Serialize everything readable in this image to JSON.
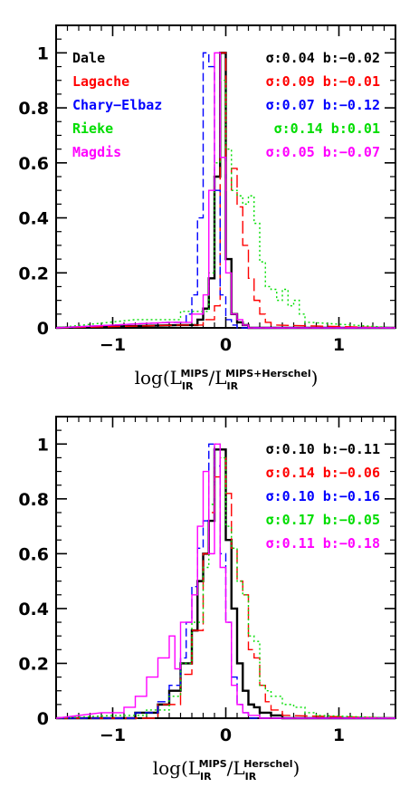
{
  "colors": {
    "Dale": "#000000",
    "Lagache": "#ff0000",
    "Chary-Elbaz": "#0000ff",
    "Rieke": "#00dd00",
    "Magdis": "#ff00ff"
  },
  "chart_data": [
    {
      "type": "line",
      "xlim": [
        -1.5,
        1.5
      ],
      "ylim": [
        0,
        1.1
      ],
      "xticks": [
        "−1",
        "0",
        "1"
      ],
      "xtick_values": [
        -1,
        0,
        1
      ],
      "yticks": [
        "0",
        "0.2",
        "0.4",
        "0.6",
        "0.8",
        "1"
      ],
      "ytick_values": [
        0,
        0.2,
        0.4,
        0.6,
        0.8,
        1
      ],
      "xlabel": {
        "pre": "log(L",
        "sub1": "IR",
        "sup1": "MIPS",
        "mid": "/L",
        "sub2": "IR",
        "sup2": "MIPS+Herschel",
        "post": ")"
      },
      "legend": [
        "Dale",
        "Lagache",
        "Chary−Elbaz",
        "Rieke",
        "Magdis"
      ],
      "stats": [
        {
          "text": "σ:0.04  b:−0.02",
          "series": "Dale"
        },
        {
          "text": "σ:0.09  b:−0.01",
          "series": "Lagache"
        },
        {
          "text": "σ:0.07  b:−0.12",
          "series": "Chary-Elbaz"
        },
        {
          "text": "σ:0.14  b:0.01",
          "series": "Rieke"
        },
        {
          "text": "σ:0.05  b:−0.07",
          "series": "Magdis"
        }
      ],
      "series": [
        {
          "name": "Dale",
          "dash": "solid",
          "x": [
            -0.4,
            -0.25,
            -0.2,
            -0.15,
            -0.1,
            -0.05,
            0.0,
            0.05,
            0.1,
            0.15,
            0.2
          ],
          "y": [
            0.01,
            0.03,
            0.07,
            0.18,
            0.55,
            1.0,
            0.25,
            0.05,
            0.02,
            0.01,
            0.0
          ]
        },
        {
          "name": "Lagache",
          "dash": "long",
          "x": [
            -0.4,
            -0.2,
            -0.1,
            -0.05,
            0.0,
            0.05,
            0.1,
            0.15,
            0.2,
            0.25,
            0.3,
            0.35,
            0.4
          ],
          "y": [
            0.01,
            0.03,
            0.08,
            1.0,
            0.5,
            0.58,
            0.44,
            0.3,
            0.18,
            0.1,
            0.05,
            0.02,
            0.01
          ]
        },
        {
          "name": "Chary-Elbaz",
          "dash": "short",
          "x": [
            -0.5,
            -0.35,
            -0.3,
            -0.25,
            -0.2,
            -0.15,
            -0.1,
            -0.05,
            0.0,
            0.05,
            0.1
          ],
          "y": [
            0.02,
            0.05,
            0.12,
            0.4,
            1.0,
            0.95,
            0.5,
            0.12,
            0.03,
            0.01,
            0.0
          ]
        },
        {
          "name": "Rieke",
          "dash": "dotted",
          "x": [
            -0.8,
            -0.4,
            -0.15,
            -0.1,
            -0.05,
            0.0,
            0.05,
            0.1,
            0.15,
            0.2,
            0.25,
            0.3,
            0.35,
            0.4,
            0.45,
            0.5,
            0.55,
            0.6,
            0.65,
            0.7
          ],
          "y": [
            0.03,
            0.06,
            0.2,
            0.6,
            0.9,
            0.65,
            0.5,
            0.48,
            0.45,
            0.48,
            0.38,
            0.24,
            0.15,
            0.14,
            0.1,
            0.14,
            0.08,
            0.1,
            0.05,
            0.02
          ]
        },
        {
          "name": "Magdis",
          "dash": "solid",
          "x": [
            -0.5,
            -0.3,
            -0.2,
            -0.15,
            -0.1,
            -0.05,
            0.0,
            0.05,
            0.1,
            0.15,
            0.2
          ],
          "y": [
            0.02,
            0.05,
            0.12,
            0.5,
            1.0,
            0.62,
            0.2,
            0.05,
            0.03,
            0.01,
            0.0
          ]
        }
      ]
    },
    {
      "type": "line",
      "xlim": [
        -1.5,
        1.5
      ],
      "ylim": [
        0,
        1.1
      ],
      "xticks": [
        "−1",
        "0",
        "1"
      ],
      "xtick_values": [
        -1,
        0,
        1
      ],
      "yticks": [
        "0",
        "0.2",
        "0.4",
        "0.6",
        "0.8",
        "1"
      ],
      "ytick_values": [
        0,
        0.2,
        0.4,
        0.6,
        0.8,
        1
      ],
      "xlabel": {
        "pre": "log(L",
        "sub1": "IR",
        "sup1": "MIPS",
        "mid": "/L",
        "sub2": "IR",
        "sup2": "Herschel",
        "post": ")"
      },
      "legend": [],
      "stats": [
        {
          "text": "σ:0.10  b:−0.11",
          "series": "Dale"
        },
        {
          "text": "σ:0.14  b:−0.06",
          "series": "Lagache"
        },
        {
          "text": "σ:0.10  b:−0.16",
          "series": "Chary-Elbaz"
        },
        {
          "text": "σ:0.17  b:−0.05",
          "series": "Rieke"
        },
        {
          "text": "σ:0.11  b:−0.18",
          "series": "Magdis"
        }
      ],
      "series": [
        {
          "name": "Dale",
          "dash": "solid",
          "x": [
            -1.0,
            -0.8,
            -0.6,
            -0.5,
            -0.4,
            -0.3,
            -0.25,
            -0.2,
            -0.15,
            -0.1,
            -0.05,
            0.0,
            0.05,
            0.1,
            0.15,
            0.2,
            0.25,
            0.3,
            0.4,
            0.5
          ],
          "y": [
            0.0,
            0.02,
            0.05,
            0.1,
            0.2,
            0.32,
            0.5,
            0.6,
            0.72,
            0.98,
            0.98,
            0.65,
            0.4,
            0.2,
            0.1,
            0.05,
            0.04,
            0.02,
            0.01,
            0.0
          ]
        },
        {
          "name": "Lagache",
          "dash": "long",
          "x": [
            -1.0,
            -0.6,
            -0.4,
            -0.3,
            -0.2,
            -0.15,
            -0.1,
            -0.05,
            0.0,
            0.05,
            0.1,
            0.15,
            0.2,
            0.25,
            0.3,
            0.35,
            0.4,
            0.5
          ],
          "y": [
            0.0,
            0.05,
            0.16,
            0.32,
            0.6,
            0.75,
            0.88,
            0.95,
            0.82,
            0.62,
            0.5,
            0.45,
            0.25,
            0.22,
            0.12,
            0.06,
            0.03,
            0.01
          ]
        },
        {
          "name": "Chary-Elbaz",
          "dash": "short",
          "x": [
            -1.0,
            -0.8,
            -0.6,
            -0.5,
            -0.4,
            -0.35,
            -0.3,
            -0.25,
            -0.2,
            -0.15,
            -0.1,
            -0.05,
            0.0,
            0.05,
            0.1,
            0.15,
            0.2
          ],
          "y": [
            0.0,
            0.02,
            0.06,
            0.12,
            0.22,
            0.35,
            0.48,
            0.62,
            0.72,
            1.0,
            0.92,
            0.6,
            0.35,
            0.15,
            0.05,
            0.02,
            0.0
          ]
        },
        {
          "name": "Rieke",
          "dash": "dotted",
          "x": [
            -1.0,
            -0.7,
            -0.5,
            -0.4,
            -0.3,
            -0.2,
            -0.15,
            -0.1,
            -0.05,
            0.0,
            0.05,
            0.1,
            0.15,
            0.2,
            0.25,
            0.3,
            0.35,
            0.4,
            0.5,
            0.6,
            0.7,
            0.8
          ],
          "y": [
            0.01,
            0.03,
            0.08,
            0.2,
            0.35,
            0.55,
            0.78,
            1.0,
            0.95,
            0.7,
            0.62,
            0.5,
            0.45,
            0.3,
            0.28,
            0.12,
            0.1,
            0.08,
            0.05,
            0.04,
            0.02,
            0.01
          ]
        },
        {
          "name": "Magdis",
          "dash": "solid",
          "x": [
            -1.1,
            -0.9,
            -0.8,
            -0.7,
            -0.6,
            -0.5,
            -0.45,
            -0.4,
            -0.3,
            -0.25,
            -0.2,
            -0.15,
            -0.1,
            -0.05,
            0.0,
            0.05,
            0.1,
            0.15,
            0.2,
            0.3
          ],
          "y": [
            0.02,
            0.04,
            0.08,
            0.15,
            0.22,
            0.3,
            0.18,
            0.35,
            0.45,
            0.7,
            0.9,
            0.6,
            1.0,
            0.55,
            0.35,
            0.12,
            0.05,
            0.02,
            0.01,
            0.0
          ]
        }
      ]
    }
  ]
}
